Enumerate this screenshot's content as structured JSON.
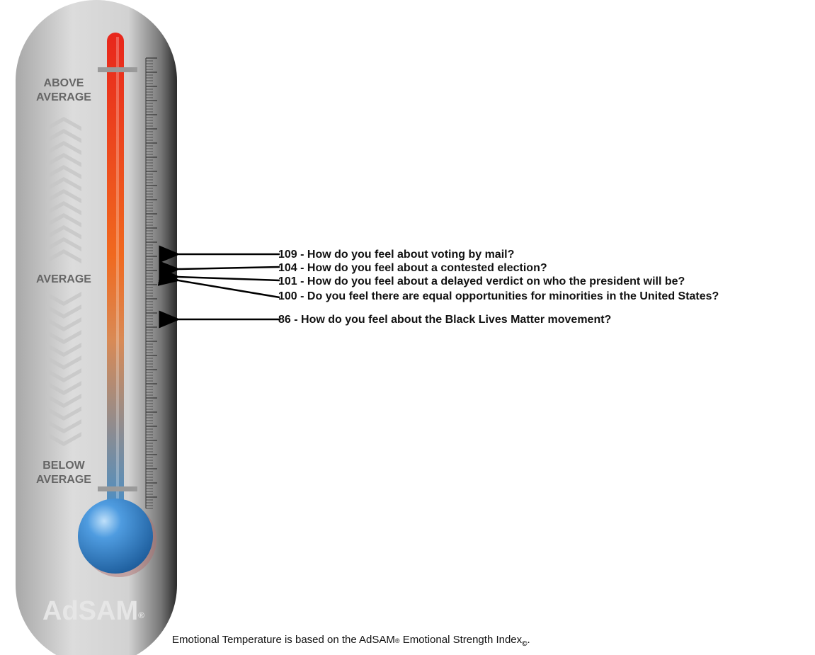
{
  "scale_labels": {
    "above": [
      "ABOVE",
      "AVERAGE"
    ],
    "average": "AVERAGE",
    "below": [
      "BELOW",
      "AVERAGE"
    ]
  },
  "logo": {
    "text": "AdSAM",
    "mark": "®"
  },
  "items": [
    "109 - How do you feel about voting by mail?",
    "104 - How do you feel about a contested election?",
    "101 - How do you feel about a delayed verdict on who the president will be?",
    "100 - Do you feel there are equal opportunities for minorities in the United States?",
    "86 - How do you feel about the Black Lives Matter movement?"
  ],
  "footer": {
    "text_1": "Emotional Temperature is based on the AdSAM",
    "mark_1": "®",
    "text_2": " Emotional Strength Index",
    "mark_2": "©",
    "text_3": "."
  }
}
